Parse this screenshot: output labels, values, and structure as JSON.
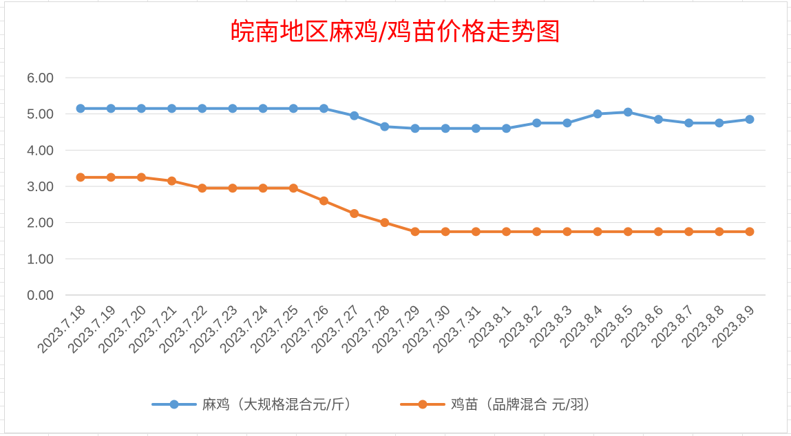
{
  "chart_data": {
    "type": "line",
    "title": "皖南地区麻鸡/鸡苗价格走势图",
    "title_color": "#ff0000",
    "xlabel": "",
    "ylabel": "",
    "ylim": [
      0,
      6
    ],
    "yticks": [
      "0.00",
      "1.00",
      "2.00",
      "3.00",
      "4.00",
      "5.00",
      "6.00"
    ],
    "grid": true,
    "legend_position": "bottom",
    "categories": [
      "2023.7.18",
      "2023.7.19",
      "2023.7.20",
      "2023.7.21",
      "2023.7.22",
      "2023.7.23",
      "2023.7.24",
      "2023.7.25",
      "2023.7.26",
      "2023.7.27",
      "2023.7.28",
      "2023.7.29",
      "2023.7.30",
      "2023.7.31",
      "2023.8.1",
      "2023.8.2",
      "2023.8.3",
      "2023.8.4",
      "2023.8.5",
      "2023.8.6",
      "2023.8.7",
      "2023.8.8",
      "2023.8.9"
    ],
    "series": [
      {
        "name": "麻鸡（大规格混合元/斤）",
        "color": "#5b9bd5",
        "values": [
          5.15,
          5.15,
          5.15,
          5.15,
          5.15,
          5.15,
          5.15,
          5.15,
          5.15,
          4.95,
          4.65,
          4.6,
          4.6,
          4.6,
          4.6,
          4.75,
          4.75,
          5.0,
          5.05,
          4.85,
          4.75,
          4.75,
          4.85
        ]
      },
      {
        "name": "鸡苗（品牌混合 元/羽）",
        "color": "#ed7d31",
        "values": [
          3.25,
          3.25,
          3.25,
          3.15,
          2.95,
          2.95,
          2.95,
          2.95,
          2.6,
          2.25,
          2.0,
          1.75,
          1.75,
          1.75,
          1.75,
          1.75,
          1.75,
          1.75,
          1.75,
          1.75,
          1.75,
          1.75,
          1.75
        ]
      }
    ]
  }
}
